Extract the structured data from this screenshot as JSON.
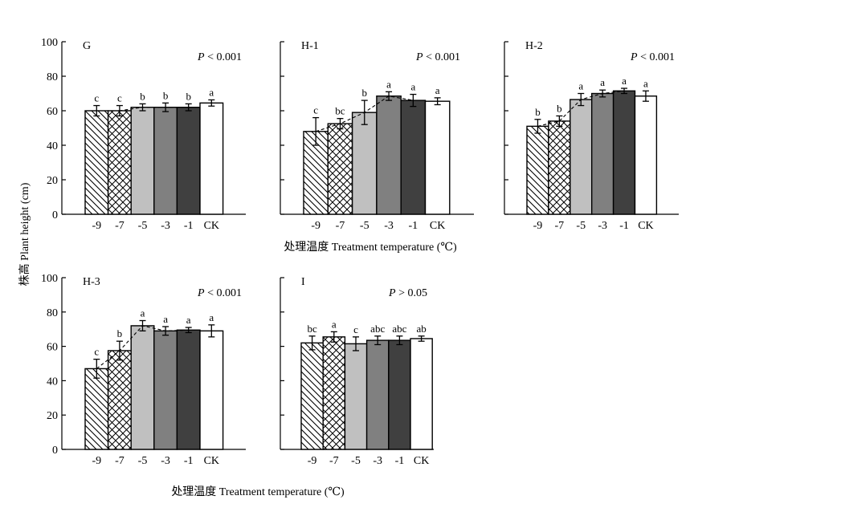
{
  "y_axis_label": "株高 Plant height (cm)",
  "x_axis_labels": [
    "处理温度 Treatment temperature (℃)",
    "处理温度 Treatment temperature (℃)"
  ],
  "chart_data": [
    {
      "type": "bar",
      "title": "G",
      "p_text": {
        "prefix": "P",
        "rest": " < 0.001"
      },
      "categories": [
        "-9",
        "-7",
        "-5",
        "-3",
        "-1",
        "CK"
      ],
      "values": [
        60,
        60,
        62,
        62,
        62,
        64.5
      ],
      "errors": [
        3,
        3,
        2,
        2.5,
        2,
        1.8
      ],
      "letters": [
        "c",
        "c",
        "b",
        "b",
        "b",
        "a"
      ],
      "trendline": true,
      "ylim": [
        0,
        100
      ],
      "yticks": [
        "0",
        "20",
        "40",
        "60",
        "80",
        "100"
      ]
    },
    {
      "type": "bar",
      "title": "H-1",
      "p_text": {
        "prefix": "P",
        "rest": " < 0.001"
      },
      "categories": [
        "-9",
        "-7",
        "-5",
        "-3",
        "-1",
        "CK"
      ],
      "values": [
        48,
        52.5,
        59,
        68.5,
        66,
        65.5
      ],
      "errors": [
        8,
        3,
        7,
        2.5,
        3.5,
        2
      ],
      "letters": [
        "c",
        "bc",
        "b",
        "a",
        "a",
        "a"
      ],
      "trendline": true,
      "ylim": [
        0,
        100
      ],
      "yticks": []
    },
    {
      "type": "bar",
      "title": "H-2",
      "p_text": {
        "prefix": "P",
        "rest": " < 0.001"
      },
      "categories": [
        "-9",
        "-7",
        "-5",
        "-3",
        "-1",
        "CK"
      ],
      "values": [
        51,
        54,
        66.5,
        70,
        71.5,
        68.5
      ],
      "errors": [
        4,
        3,
        3.5,
        2,
        1.5,
        3
      ],
      "letters": [
        "b",
        "b",
        "a",
        "a",
        "a",
        "a"
      ],
      "trendline": true,
      "ylim": [
        0,
        100
      ],
      "yticks": []
    },
    {
      "type": "bar",
      "title": "H-3",
      "p_text": {
        "prefix": "P",
        "rest": " < 0.001"
      },
      "categories": [
        "-9",
        "-7",
        "-5",
        "-3",
        "-1",
        "CK"
      ],
      "values": [
        47,
        57.5,
        72,
        69,
        69.5,
        69
      ],
      "errors": [
        5.5,
        5.5,
        3,
        2.5,
        1.5,
        3.5
      ],
      "letters": [
        "c",
        "b",
        "a",
        "a",
        "a",
        "a"
      ],
      "trendline": true,
      "ylim": [
        0,
        100
      ],
      "yticks": [
        "0",
        "20",
        "40",
        "60",
        "80",
        "100"
      ]
    },
    {
      "type": "bar",
      "title": "I",
      "p_text": {
        "prefix": "P",
        "rest": " > 0.05"
      },
      "categories": [
        "-9",
        "-7",
        "-5",
        "-3",
        "-1",
        "CK"
      ],
      "values": [
        62,
        65.5,
        61.5,
        63.5,
        63.5,
        64.5
      ],
      "errors": [
        4,
        3,
        4,
        2.5,
        2.5,
        1.5
      ],
      "letters": [
        "bc",
        "a",
        "c",
        "abc",
        "abc",
        "ab"
      ],
      "trendline": false,
      "ylim": [
        0,
        100
      ],
      "yticks": []
    }
  ],
  "bar_fills": [
    "hatch-diagonal",
    "hatch-cross",
    "#c0c0c0",
    "#808080",
    "#404040",
    "#ffffff"
  ]
}
